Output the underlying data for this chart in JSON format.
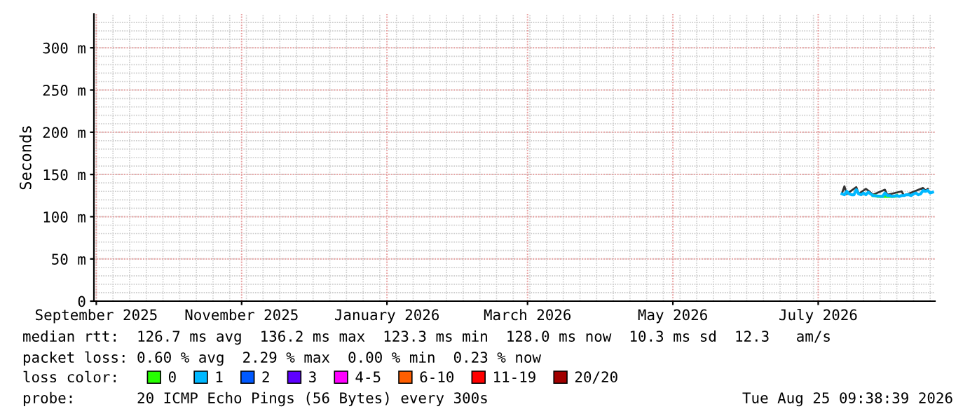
{
  "chart_data": {
    "type": "line",
    "ylabel": "Seconds",
    "xlim": [
      "2025-08-31",
      "2026-08-19"
    ],
    "xticks": [
      {
        "value": "2025-09-01",
        "label": "September 2025"
      },
      {
        "value": "2025-11-01",
        "label": "November 2025"
      },
      {
        "value": "2026-01-01",
        "label": "January 2026"
      },
      {
        "value": "2026-03-01",
        "label": "March 2026"
      },
      {
        "value": "2026-05-01",
        "label": "May 2026"
      },
      {
        "value": "2026-07-01",
        "label": "July 2026"
      }
    ],
    "ylim": [
      0,
      340
    ],
    "yticks": [
      0,
      {
        "value": 50,
        "label": "50 m"
      },
      {
        "value": 100,
        "label": "100 m"
      },
      {
        "value": 150,
        "label": "150 m"
      },
      {
        "value": 200,
        "label": "200 m"
      },
      {
        "value": 250,
        "label": "250 m"
      },
      {
        "value": 300,
        "label": "300 m"
      }
    ],
    "grid": true,
    "legend": "bottom",
    "legend_title": "loss color:",
    "series": [
      {
        "color": "#333333",
        "x": [
          "2026-07-11",
          "2026-07-12",
          "2026-07-13",
          "2026-07-17",
          "2026-07-18",
          "2026-07-21",
          "2026-07-22",
          "2026-07-24",
          "2026-07-29",
          "2026-07-30",
          "2026-08-05",
          "2026-08-06",
          "2026-08-14",
          "2026-08-15",
          "2026-08-16"
        ],
        "values": [
          128,
          136,
          127,
          135,
          127,
          133,
          131,
          126,
          132,
          126,
          130,
          125,
          134,
          131,
          133
        ]
      },
      {
        "name": "0",
        "color": "#26ff00",
        "x": [
          "2026-07-24",
          "2026-07-25",
          "2026-07-26",
          "2026-07-27",
          "2026-08-01",
          "2026-08-02",
          "2026-08-03"
        ],
        "values": [
          125,
          125,
          124,
          124,
          124,
          124,
          125
        ]
      },
      {
        "name": "1",
        "color": "#00b8ff",
        "x": [
          "2026-07-11",
          "2026-07-12",
          "2026-07-13",
          "2026-07-14",
          "2026-07-15",
          "2026-07-16",
          "2026-07-17",
          "2026-07-18",
          "2026-07-19",
          "2026-07-20",
          "2026-07-21",
          "2026-07-22",
          "2026-07-23",
          "2026-07-24",
          "2026-07-28",
          "2026-07-29",
          "2026-07-30",
          "2026-07-31",
          "2026-08-01",
          "2026-08-03",
          "2026-08-04",
          "2026-08-05",
          "2026-08-06",
          "2026-08-07",
          "2026-08-08",
          "2026-08-09",
          "2026-08-10",
          "2026-08-11",
          "2026-08-12",
          "2026-08-13",
          "2026-08-14",
          "2026-08-15",
          "2026-08-16",
          "2026-08-17",
          "2026-08-18"
        ],
        "values": [
          127,
          126,
          130,
          127,
          126,
          126,
          132,
          127,
          126,
          128,
          126,
          129,
          127,
          125,
          124,
          128,
          125,
          125,
          124,
          125,
          124,
          125,
          125,
          126,
          126,
          125,
          127,
          128,
          126,
          127,
          131,
          130,
          131,
          128,
          129
        ]
      },
      {
        "name": "2",
        "color": "#0059ff"
      },
      {
        "name": "3",
        "color": "#5e00ff"
      },
      {
        "name": "4-5",
        "color": "#ff00ff"
      },
      {
        "name": "6-10",
        "color": "#ff5e00"
      },
      {
        "name": "11-19",
        "color": "#ff0000"
      },
      {
        "name": "20/20",
        "color": "#a10000"
      }
    ],
    "annotations": [
      "median rtt:  126.7 ms avg  136.2 ms max  123.3 ms min  128.0 ms now  10.3 ms sd  12.3   am/s",
      "packet loss: 0.60 % avg  2.29 % max  0.00 % min  0.23 % now",
      "probe:       20 ICMP Echo Pings (56 Bytes) every 300s",
      "Tue Aug 25 09:38:39 2026"
    ]
  }
}
